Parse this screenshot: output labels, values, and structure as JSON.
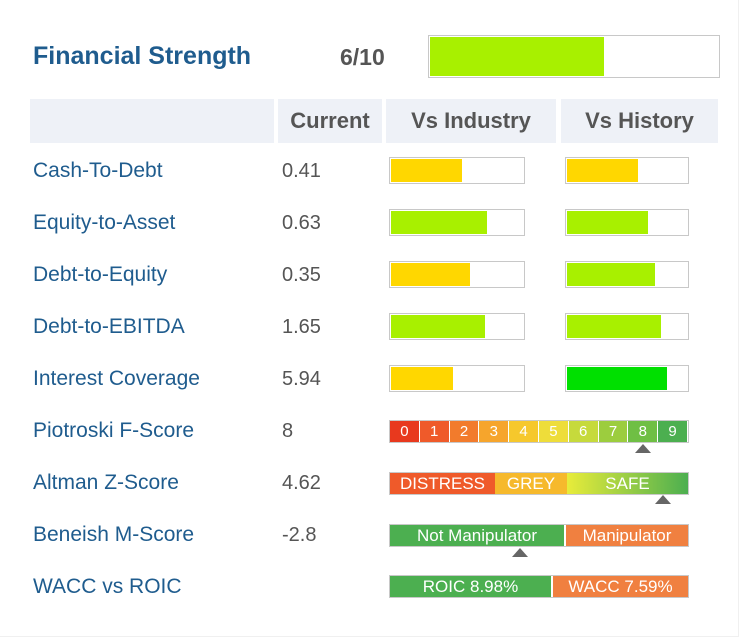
{
  "header": {
    "title": "Financial Strength",
    "score": "6/10",
    "score_fraction": 0.6,
    "score_color": "#a8f000"
  },
  "columns": [
    "Current",
    "Vs Industry",
    "Vs History"
  ],
  "colors": {
    "yellow": "#ffd700",
    "lime": "#a8f000",
    "green": "#00e000",
    "orange": "#f08040",
    "dark_green": "#4caf50"
  },
  "rows": [
    {
      "label": "Cash-To-Debt",
      "value": "0.41",
      "industry": 0.53,
      "industry_color": "#ffd700",
      "history": 0.58,
      "history_color": "#ffd700"
    },
    {
      "label": "Equity-to-Asset",
      "value": "0.63",
      "industry": 0.72,
      "industry_color": "#a8f000",
      "history": 0.66,
      "history_color": "#a8f000"
    },
    {
      "label": "Debt-to-Equity",
      "value": "0.35",
      "industry": 0.59,
      "industry_color": "#ffd700",
      "history": 0.72,
      "history_color": "#a8f000"
    },
    {
      "label": "Debt-to-EBITDA",
      "value": "1.65",
      "industry": 0.7,
      "industry_color": "#a8f000",
      "history": 0.77,
      "history_color": "#a8f000"
    },
    {
      "label": "Interest Coverage",
      "value": "5.94",
      "industry": 0.46,
      "industry_color": "#ffd700",
      "history": 0.82,
      "history_color": "#00e000"
    }
  ],
  "piotroski": {
    "label": "Piotroski F-Score",
    "value": "8",
    "scale": [
      "0",
      "1",
      "2",
      "3",
      "4",
      "5",
      "6",
      "7",
      "8",
      "9"
    ],
    "selected": 8
  },
  "altman": {
    "label": "Altman Z-Score",
    "value": "4.62",
    "zones": [
      "DISTRESS",
      "GREY",
      "SAFE"
    ],
    "marker_fraction": 0.92
  },
  "beneish": {
    "label": "Beneish M-Score",
    "value": "-2.8",
    "zones": [
      "Not Manipulator",
      "Manipulator"
    ],
    "marker_fraction": 0.44
  },
  "wacc": {
    "label": "WACC vs ROIC",
    "roic": "ROIC 8.98%",
    "wacc": "WACC 7.59%",
    "roic_fraction": 0.542
  }
}
